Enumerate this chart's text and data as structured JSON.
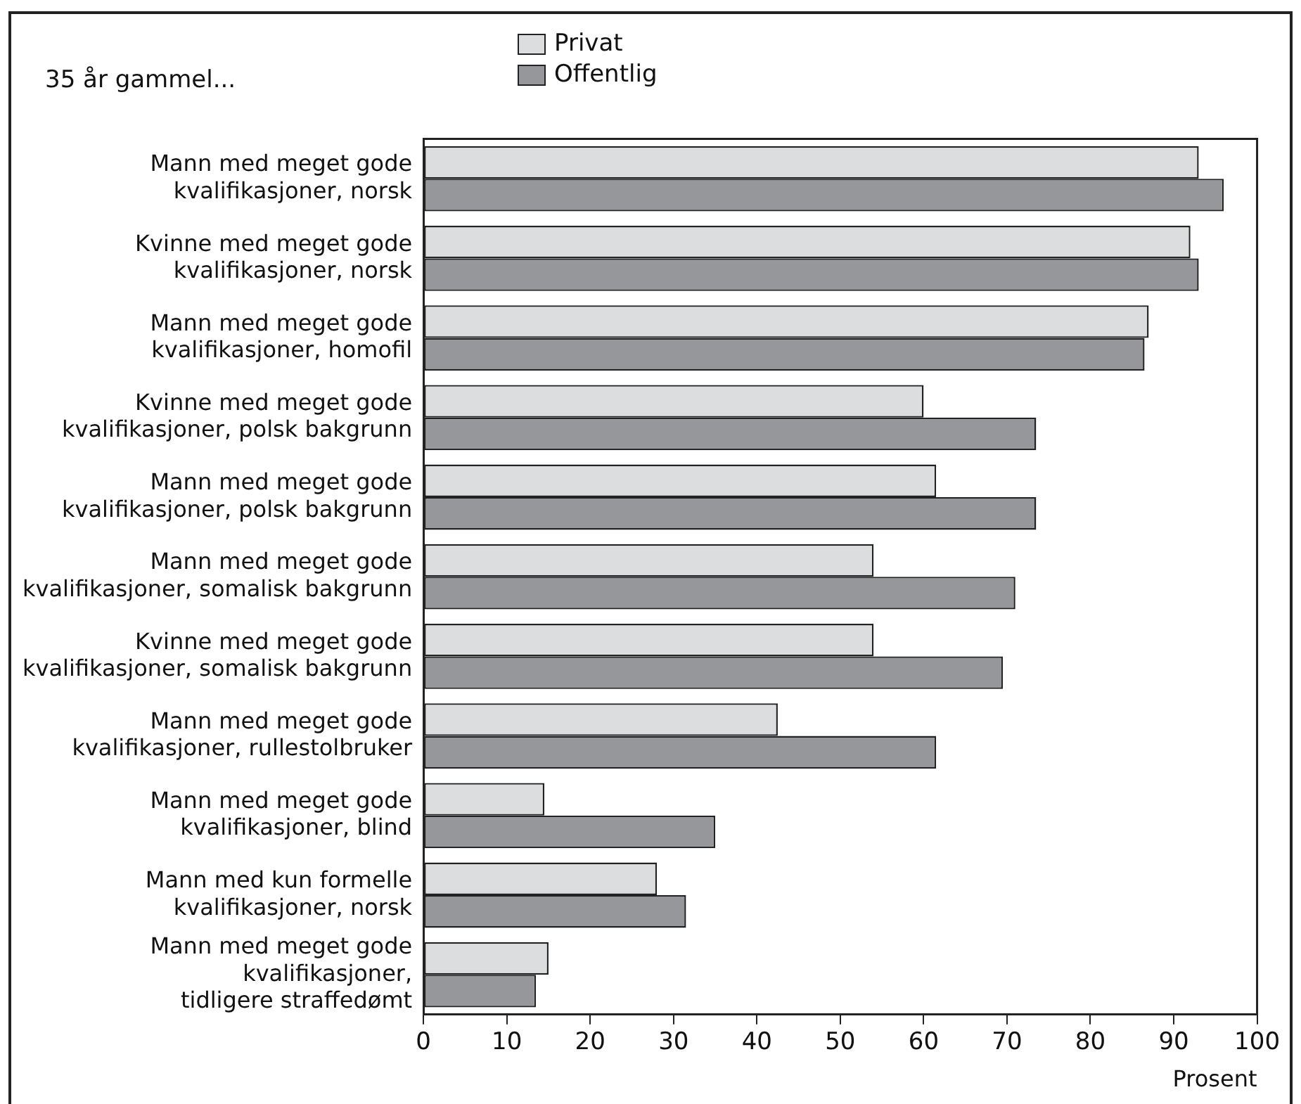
{
  "chart_data": {
    "type": "bar",
    "orientation": "horizontal",
    "xlabel": "Prosent",
    "annotations": [
      "35 år gammel..."
    ],
    "categories": [
      "Mann med meget gode\nkvalifikasjoner, norsk",
      "Kvinne med meget gode\nkvalifikasjoner, norsk",
      "Mann med meget gode\nkvalifikasjoner, homofil",
      "Kvinne med meget gode\nkvalifikasjoner, polsk bakgrunn",
      "Mann med meget gode\nkvalifikasjoner, polsk bakgrunn",
      "Mann med meget gode\nkvalifikasjoner, somalisk bakgrunn",
      "Kvinne med meget gode\nkvalifikasjoner, somalisk bakgrunn",
      "Mann med meget gode\nkvalifikasjoner, rullestolbruker",
      "Mann med meget gode\nkvalifikasjoner, blind",
      "Mann med kun formelle\nkvalifikasjoner, norsk",
      "Mann med meget gode\nkvalifikasjoner,\ntidligere straffedømt"
    ],
    "series": [
      {
        "name": "Privat",
        "color": "#dcddde",
        "values": [
          93,
          92,
          87,
          60,
          61.5,
          54,
          54,
          42.5,
          14.5,
          28,
          15
        ]
      },
      {
        "name": "Offentlig",
        "color": "#96979a",
        "values": [
          96,
          93,
          86.5,
          73.5,
          73.5,
          71,
          69.5,
          61.5,
          35,
          31.5,
          13.5
        ]
      }
    ],
    "xlim": [
      0,
      100
    ],
    "xticks": [
      0,
      10,
      20,
      30,
      40,
      50,
      60,
      70,
      80,
      90,
      100
    ],
    "legend": "top left"
  }
}
